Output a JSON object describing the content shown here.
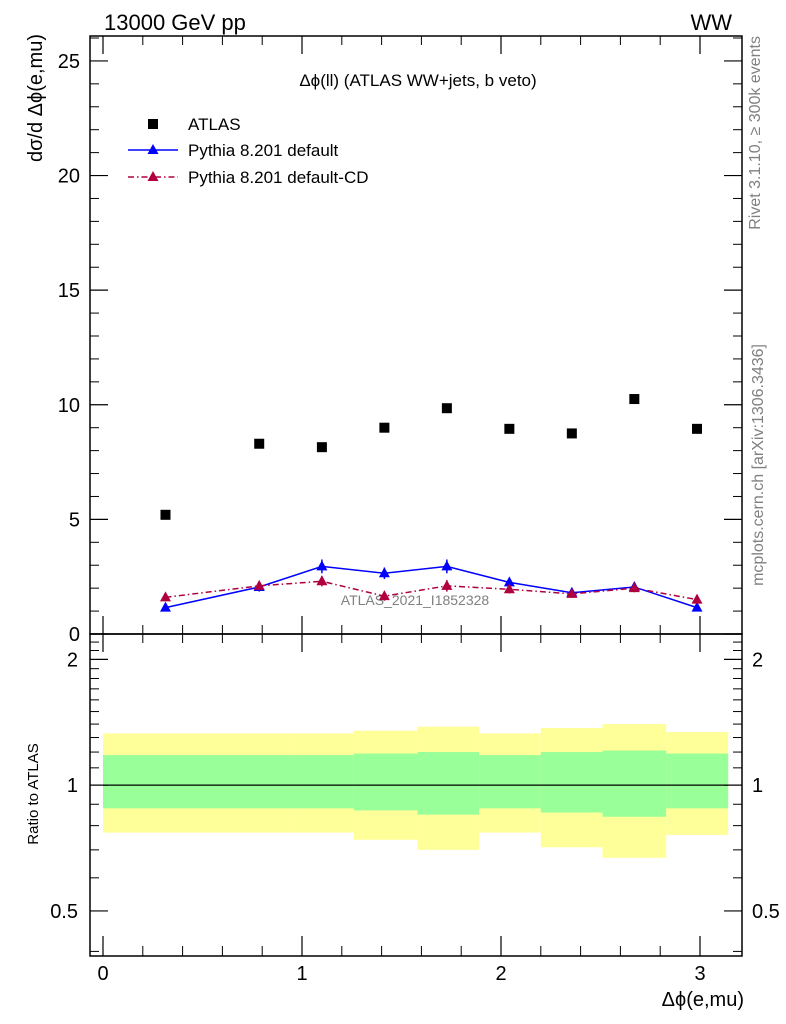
{
  "header": {
    "left": "13000 GeV pp",
    "right": "WW"
  },
  "side": {
    "rivet": "Rivet 3.1.10, ≥ 300k events",
    "mcplots": "mcplots.cern.ch [arXiv:1306.3436]"
  },
  "chart_data": [
    {
      "type": "scatter",
      "title": "Δϕ(ll) (ATLAS WW+jets, b veto)",
      "ylabel": "dσ/d Δϕ(e,mu)",
      "xlim": [
        0,
        3.1416
      ],
      "ylim": [
        0,
        26
      ],
      "yticks": [
        0,
        5,
        10,
        15,
        20,
        25
      ],
      "watermark": "ATLAS_2021_I1852328",
      "legend_position": "top-left",
      "x": [
        0.314,
        0.785,
        1.1,
        1.414,
        1.728,
        2.042,
        2.356,
        2.67,
        2.985
      ],
      "series": [
        {
          "name": "ATLAS",
          "style": "markers",
          "color": "#000000",
          "values": [
            5.2,
            8.3,
            8.15,
            9.0,
            9.85,
            8.95,
            8.75,
            10.25,
            8.95
          ]
        },
        {
          "name": "Pythia 8.201 default",
          "style": "solid",
          "color": "#0000ff",
          "values": [
            1.15,
            2.05,
            2.95,
            2.65,
            2.95,
            2.25,
            1.8,
            2.05,
            1.15
          ],
          "errors": [
            0.1,
            0.2,
            0.3,
            0.25,
            0.3,
            0.2,
            0.2,
            0.2,
            0.15
          ]
        },
        {
          "name": "Pythia 8.201 default-CD",
          "style": "dash-dot",
          "color": "#b00040",
          "values": [
            1.6,
            2.1,
            2.3,
            1.65,
            2.1,
            1.95,
            1.75,
            2.0,
            1.5
          ],
          "errors": [
            0.12,
            0.2,
            0.22,
            0.2,
            0.25,
            0.18,
            0.15,
            0.18,
            0.15
          ]
        }
      ]
    },
    {
      "type": "area",
      "ylabel": "Ratio to ATLAS",
      "xlabel": "Δϕ(e,mu)",
      "xlim": [
        0,
        3.1416
      ],
      "ylim": [
        0.39,
        2.3
      ],
      "ylog": true,
      "yticks": [
        0.5,
        1,
        2
      ],
      "ytick_labels": [
        "0.5",
        "1",
        "2"
      ],
      "xticks": [
        0,
        1,
        2,
        3
      ],
      "xtick_labels": [
        "0",
        "1",
        "2",
        "3"
      ],
      "bin_edges": [
        0,
        0.95,
        1.26,
        1.58,
        1.89,
        2.2,
        2.51,
        2.83,
        3.1416
      ],
      "inner_band": {
        "color": "#99ff99",
        "up": [
          1.18,
          1.18,
          1.19,
          1.2,
          1.18,
          1.2,
          1.21,
          1.19,
          1.25
        ],
        "down": [
          0.88,
          0.88,
          0.87,
          0.85,
          0.88,
          0.86,
          0.84,
          0.88,
          0.83
        ]
      },
      "outer_band": {
        "color": "#ffff99",
        "up": [
          1.33,
          1.33,
          1.35,
          1.38,
          1.33,
          1.37,
          1.4,
          1.34,
          1.45
        ],
        "down": [
          0.77,
          0.77,
          0.74,
          0.7,
          0.77,
          0.71,
          0.67,
          0.76,
          0.63
        ]
      },
      "reference_line": 1
    }
  ]
}
